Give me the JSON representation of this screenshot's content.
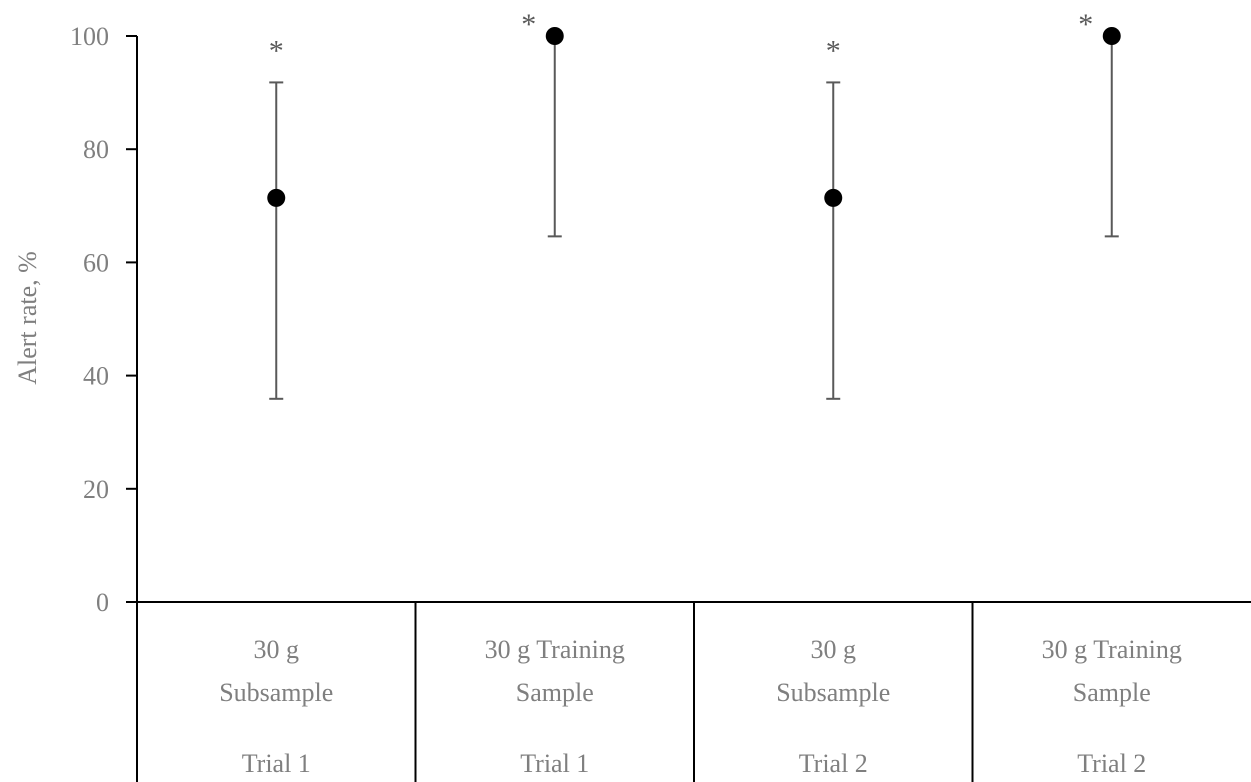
{
  "chart_data": {
    "type": "scatter",
    "ylabel": "Alert rate, %",
    "ylim": [
      0,
      100
    ],
    "yticks": [
      0,
      20,
      40,
      60,
      80,
      100
    ],
    "grid": false,
    "categories": [
      {
        "line1": "30 g",
        "line2": "Subsample",
        "group": "Trial 1"
      },
      {
        "line1": "30 g Training",
        "line2": "Sample",
        "group": "Trial 1"
      },
      {
        "line1": "30 g",
        "line2": "Subsample",
        "group": "Trial 2"
      },
      {
        "line1": "30 g Training",
        "line2": "Sample",
        "group": "Trial 2"
      }
    ],
    "series": [
      {
        "values": [
          71.4,
          100,
          71.4,
          100
        ],
        "error_low": [
          35.9,
          64.6,
          35.9,
          64.6
        ],
        "error_high": [
          91.8,
          100,
          91.8,
          100
        ],
        "significance": [
          "*",
          "*",
          "*",
          "*"
        ]
      }
    ],
    "colors": {
      "point": "#000000",
      "error_bar": "#595959",
      "axis": "#000000",
      "text": "#7f7f7f"
    }
  }
}
